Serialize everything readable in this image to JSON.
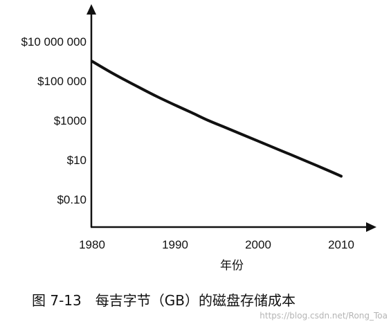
{
  "chart_data": {
    "type": "line",
    "xlabel": "年份",
    "ylabel": "",
    "x_scale": "linear",
    "y_scale": "log",
    "x_ticks": [
      {
        "value": 1980,
        "label": "1980"
      },
      {
        "value": 1990,
        "label": "1990"
      },
      {
        "value": 2000,
        "label": "2000"
      },
      {
        "value": 2010,
        "label": "2010"
      }
    ],
    "y_ticks": [
      {
        "value": 10000000,
        "label": "$10 000 000"
      },
      {
        "value": 100000,
        "label": "$100 000"
      },
      {
        "value": 1000,
        "label": "$1000"
      },
      {
        "value": 10,
        "label": "$10"
      },
      {
        "value": 0.1,
        "label": "$0.10"
      }
    ],
    "xlim": [
      1980,
      2012
    ],
    "ylim": [
      0.03,
      100000000
    ],
    "grid": false,
    "series": [
      {
        "x": [
          1980,
          1982,
          1984,
          1986,
          1988,
          1990,
          1992,
          1994,
          1996,
          1998,
          2000,
          2002,
          2004,
          2006,
          2008,
          2010
        ],
        "y": [
          1000000,
          320000,
          110000,
          40000,
          15000,
          6000,
          2500,
          1000,
          450,
          200,
          90,
          40,
          18,
          8,
          3.5,
          1.5
        ]
      }
    ],
    "caption": "图 7-13　每吉字节（GB）的磁盘存储成本"
  },
  "watermark": "https://blog.csdn.net/Rong_Toa",
  "colors": {
    "axis": "#111111",
    "line": "#111111",
    "text": "#111111",
    "watermark": "#b4b4b4"
  }
}
